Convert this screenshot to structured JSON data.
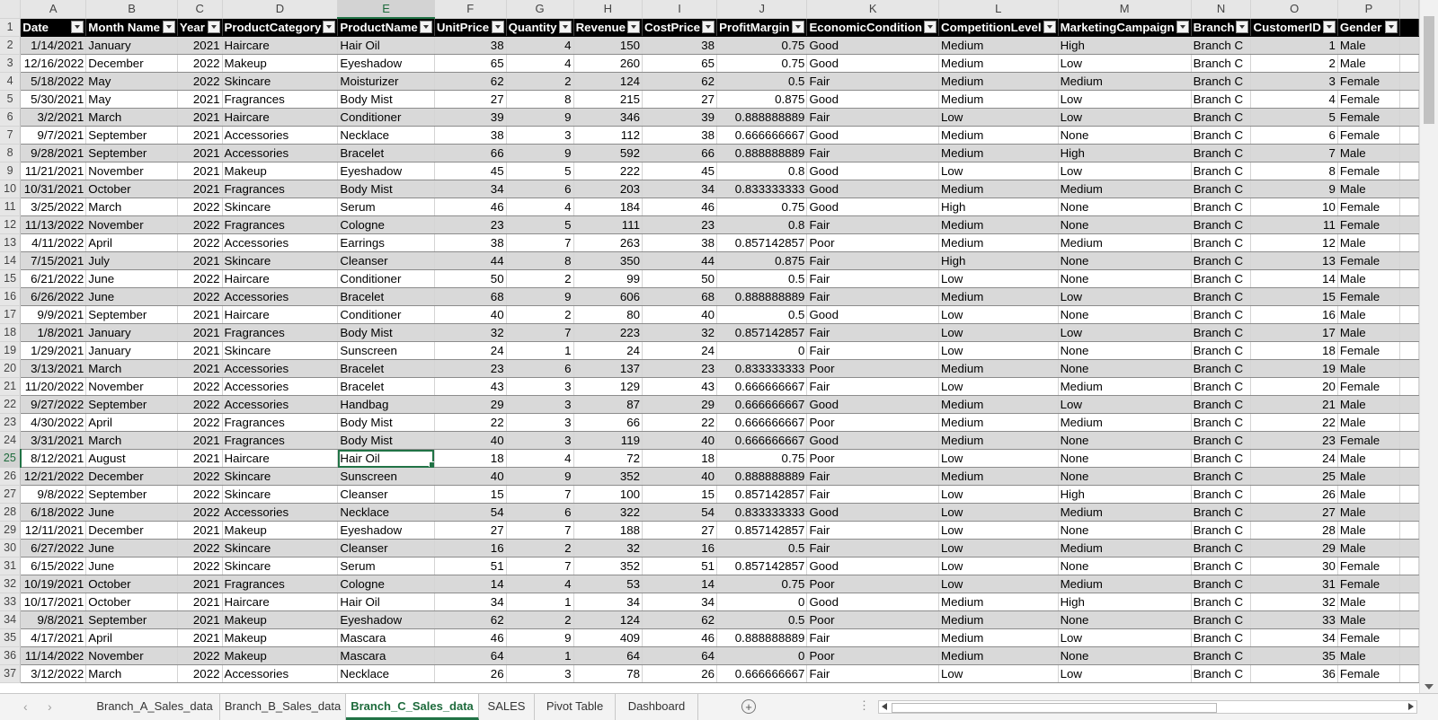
{
  "column_letters": [
    "A",
    "B",
    "C",
    "D",
    "E",
    "F",
    "G",
    "H",
    "I",
    "J",
    "K",
    "L",
    "M",
    "N",
    "O",
    "P"
  ],
  "headers": [
    "Date",
    "Month Name",
    "Year",
    "ProductCategory",
    "ProductName",
    "UnitPrice",
    "Quantity",
    "Revenue",
    "CostPrice",
    "ProfitMargin",
    "EconomicCondition",
    "CompetitionLevel",
    "MarketingCampaign",
    "Branch",
    "CustomerID",
    "Gender"
  ],
  "rows": [
    [
      "1/14/2021",
      "January",
      "2021",
      "Haircare",
      "Hair Oil",
      "38",
      "4",
      "150",
      "38",
      "0.75",
      "Good",
      "Medium",
      "High",
      "Branch C",
      "1",
      "Male"
    ],
    [
      "12/16/2022",
      "December",
      "2022",
      "Makeup",
      "Eyeshadow",
      "65",
      "4",
      "260",
      "65",
      "0.75",
      "Good",
      "Medium",
      "Low",
      "Branch C",
      "2",
      "Male"
    ],
    [
      "5/18/2022",
      "May",
      "2022",
      "Skincare",
      "Moisturizer",
      "62",
      "2",
      "124",
      "62",
      "0.5",
      "Fair",
      "Medium",
      "Medium",
      "Branch C",
      "3",
      "Female"
    ],
    [
      "5/30/2021",
      "May",
      "2021",
      "Fragrances",
      "Body Mist",
      "27",
      "8",
      "215",
      "27",
      "0.875",
      "Good",
      "Medium",
      "Low",
      "Branch C",
      "4",
      "Female"
    ],
    [
      "3/2/2021",
      "March",
      "2021",
      "Haircare",
      "Conditioner",
      "39",
      "9",
      "346",
      "39",
      "0.888888889",
      "Fair",
      "Low",
      "Low",
      "Branch C",
      "5",
      "Female"
    ],
    [
      "9/7/2021",
      "September",
      "2021",
      "Accessories",
      "Necklace",
      "38",
      "3",
      "112",
      "38",
      "0.666666667",
      "Good",
      "Medium",
      "None",
      "Branch C",
      "6",
      "Female"
    ],
    [
      "9/28/2021",
      "September",
      "2021",
      "Accessories",
      "Bracelet",
      "66",
      "9",
      "592",
      "66",
      "0.888888889",
      "Fair",
      "Medium",
      "High",
      "Branch C",
      "7",
      "Male"
    ],
    [
      "11/21/2021",
      "November",
      "2021",
      "Makeup",
      "Eyeshadow",
      "45",
      "5",
      "222",
      "45",
      "0.8",
      "Good",
      "Low",
      "Low",
      "Branch C",
      "8",
      "Female"
    ],
    [
      "10/31/2021",
      "October",
      "2021",
      "Fragrances",
      "Body Mist",
      "34",
      "6",
      "203",
      "34",
      "0.833333333",
      "Good",
      "Medium",
      "Medium",
      "Branch C",
      "9",
      "Male"
    ],
    [
      "3/25/2022",
      "March",
      "2022",
      "Skincare",
      "Serum",
      "46",
      "4",
      "184",
      "46",
      "0.75",
      "Good",
      "High",
      "None",
      "Branch C",
      "10",
      "Female"
    ],
    [
      "11/13/2022",
      "November",
      "2022",
      "Fragrances",
      "Cologne",
      "23",
      "5",
      "111",
      "23",
      "0.8",
      "Fair",
      "Medium",
      "None",
      "Branch C",
      "11",
      "Female"
    ],
    [
      "4/11/2022",
      "April",
      "2022",
      "Accessories",
      "Earrings",
      "38",
      "7",
      "263",
      "38",
      "0.857142857",
      "Poor",
      "Medium",
      "Medium",
      "Branch C",
      "12",
      "Male"
    ],
    [
      "7/15/2021",
      "July",
      "2021",
      "Skincare",
      "Cleanser",
      "44",
      "8",
      "350",
      "44",
      "0.875",
      "Fair",
      "High",
      "None",
      "Branch C",
      "13",
      "Female"
    ],
    [
      "6/21/2022",
      "June",
      "2022",
      "Haircare",
      "Conditioner",
      "50",
      "2",
      "99",
      "50",
      "0.5",
      "Fair",
      "Low",
      "None",
      "Branch C",
      "14",
      "Male"
    ],
    [
      "6/26/2022",
      "June",
      "2022",
      "Accessories",
      "Bracelet",
      "68",
      "9",
      "606",
      "68",
      "0.888888889",
      "Fair",
      "Medium",
      "Low",
      "Branch C",
      "15",
      "Female"
    ],
    [
      "9/9/2021",
      "September",
      "2021",
      "Haircare",
      "Conditioner",
      "40",
      "2",
      "80",
      "40",
      "0.5",
      "Good",
      "Low",
      "None",
      "Branch C",
      "16",
      "Male"
    ],
    [
      "1/8/2021",
      "January",
      "2021",
      "Fragrances",
      "Body Mist",
      "32",
      "7",
      "223",
      "32",
      "0.857142857",
      "Fair",
      "Low",
      "Low",
      "Branch C",
      "17",
      "Male"
    ],
    [
      "1/29/2021",
      "January",
      "2021",
      "Skincare",
      "Sunscreen",
      "24",
      "1",
      "24",
      "24",
      "0",
      "Fair",
      "Low",
      "None",
      "Branch C",
      "18",
      "Female"
    ],
    [
      "3/13/2021",
      "March",
      "2021",
      "Accessories",
      "Bracelet",
      "23",
      "6",
      "137",
      "23",
      "0.833333333",
      "Poor",
      "Medium",
      "None",
      "Branch C",
      "19",
      "Male"
    ],
    [
      "11/20/2022",
      "November",
      "2022",
      "Accessories",
      "Bracelet",
      "43",
      "3",
      "129",
      "43",
      "0.666666667",
      "Fair",
      "Low",
      "Medium",
      "Branch C",
      "20",
      "Female"
    ],
    [
      "9/27/2022",
      "September",
      "2022",
      "Accessories",
      "Handbag",
      "29",
      "3",
      "87",
      "29",
      "0.666666667",
      "Good",
      "Medium",
      "Low",
      "Branch C",
      "21",
      "Male"
    ],
    [
      "4/30/2022",
      "April",
      "2022",
      "Fragrances",
      "Body Mist",
      "22",
      "3",
      "66",
      "22",
      "0.666666667",
      "Poor",
      "Medium",
      "Medium",
      "Branch C",
      "22",
      "Male"
    ],
    [
      "3/31/2021",
      "March",
      "2021",
      "Fragrances",
      "Body Mist",
      "40",
      "3",
      "119",
      "40",
      "0.666666667",
      "Good",
      "Medium",
      "None",
      "Branch C",
      "23",
      "Female"
    ],
    [
      "8/12/2021",
      "August",
      "2021",
      "Haircare",
      "Hair Oil",
      "18",
      "4",
      "72",
      "18",
      "0.75",
      "Poor",
      "Low",
      "None",
      "Branch C",
      "24",
      "Male"
    ],
    [
      "12/21/2022",
      "December",
      "2022",
      "Skincare",
      "Sunscreen",
      "40",
      "9",
      "352",
      "40",
      "0.888888889",
      "Fair",
      "Medium",
      "None",
      "Branch C",
      "25",
      "Male"
    ],
    [
      "9/8/2022",
      "September",
      "2022",
      "Skincare",
      "Cleanser",
      "15",
      "7",
      "100",
      "15",
      "0.857142857",
      "Fair",
      "Low",
      "High",
      "Branch C",
      "26",
      "Male"
    ],
    [
      "6/18/2022",
      "June",
      "2022",
      "Accessories",
      "Necklace",
      "54",
      "6",
      "322",
      "54",
      "0.833333333",
      "Good",
      "Low",
      "Medium",
      "Branch C",
      "27",
      "Male"
    ],
    [
      "12/11/2021",
      "December",
      "2021",
      "Makeup",
      "Eyeshadow",
      "27",
      "7",
      "188",
      "27",
      "0.857142857",
      "Fair",
      "Low",
      "None",
      "Branch C",
      "28",
      "Male"
    ],
    [
      "6/27/2022",
      "June",
      "2022",
      "Skincare",
      "Cleanser",
      "16",
      "2",
      "32",
      "16",
      "0.5",
      "Fair",
      "Low",
      "Medium",
      "Branch C",
      "29",
      "Male"
    ],
    [
      "6/15/2022",
      "June",
      "2022",
      "Skincare",
      "Serum",
      "51",
      "7",
      "352",
      "51",
      "0.857142857",
      "Good",
      "Low",
      "None",
      "Branch C",
      "30",
      "Female"
    ],
    [
      "10/19/2021",
      "October",
      "2021",
      "Fragrances",
      "Cologne",
      "14",
      "4",
      "53",
      "14",
      "0.75",
      "Poor",
      "Low",
      "Medium",
      "Branch C",
      "31",
      "Female"
    ],
    [
      "10/17/2021",
      "October",
      "2021",
      "Haircare",
      "Hair Oil",
      "34",
      "1",
      "34",
      "34",
      "0",
      "Good",
      "Medium",
      "High",
      "Branch C",
      "32",
      "Male"
    ],
    [
      "9/8/2021",
      "September",
      "2021",
      "Makeup",
      "Eyeshadow",
      "62",
      "2",
      "124",
      "62",
      "0.5",
      "Poor",
      "Medium",
      "None",
      "Branch C",
      "33",
      "Male"
    ],
    [
      "4/17/2021",
      "April",
      "2021",
      "Makeup",
      "Mascara",
      "46",
      "9",
      "409",
      "46",
      "0.888888889",
      "Fair",
      "Medium",
      "Low",
      "Branch C",
      "34",
      "Female"
    ],
    [
      "11/14/2022",
      "November",
      "2022",
      "Makeup",
      "Mascara",
      "64",
      "1",
      "64",
      "64",
      "0",
      "Poor",
      "Medium",
      "None",
      "Branch C",
      "35",
      "Male"
    ],
    [
      "3/12/2022",
      "March",
      "2022",
      "Accessories",
      "Necklace",
      "26",
      "3",
      "78",
      "26",
      "0.666666667",
      "Fair",
      "Low",
      "Low",
      "Branch C",
      "36",
      "Female"
    ]
  ],
  "selected_cell": {
    "column": "E",
    "row": 25
  },
  "sheet_tabs": [
    "Branch_A_Sales_data",
    "Branch_B_Sales_data",
    "Branch_C_Sales_data",
    "SALES",
    "Pivot Table",
    "Dashboard"
  ],
  "active_tab": "Branch_C_Sales_data",
  "colors": {
    "accent": "#217346",
    "header_bg": "#000000",
    "band": "#d9d9d9"
  }
}
